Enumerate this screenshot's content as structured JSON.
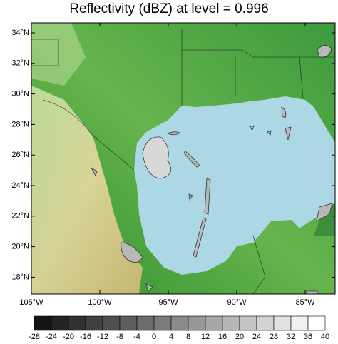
{
  "title": "Reflectivity (dBZ) at level = 0.996",
  "map": {
    "lat_ticks": [
      {
        "value": 34,
        "label": "34°N"
      },
      {
        "value": 32,
        "label": "32°N"
      },
      {
        "value": 30,
        "label": "30°N"
      },
      {
        "value": 28,
        "label": "28°N"
      },
      {
        "value": 26,
        "label": "26°N"
      },
      {
        "value": 24,
        "label": "24°N"
      },
      {
        "value": 22,
        "label": "22°N"
      },
      {
        "value": 20,
        "label": "20°N"
      },
      {
        "value": 18,
        "label": "18°N"
      }
    ],
    "lon_ticks": [
      {
        "value": -105,
        "label": "105°W"
      },
      {
        "value": -100,
        "label": "100°W"
      },
      {
        "value": -95,
        "label": "95°W"
      },
      {
        "value": -90,
        "label": "90°W"
      },
      {
        "value": -85,
        "label": "85°W"
      }
    ]
  },
  "colorbar": {
    "ticks": [
      -28,
      -24,
      -20,
      -16,
      -12,
      -8,
      -4,
      0,
      4,
      8,
      12,
      16,
      20,
      24,
      28,
      32,
      36,
      40
    ]
  }
}
